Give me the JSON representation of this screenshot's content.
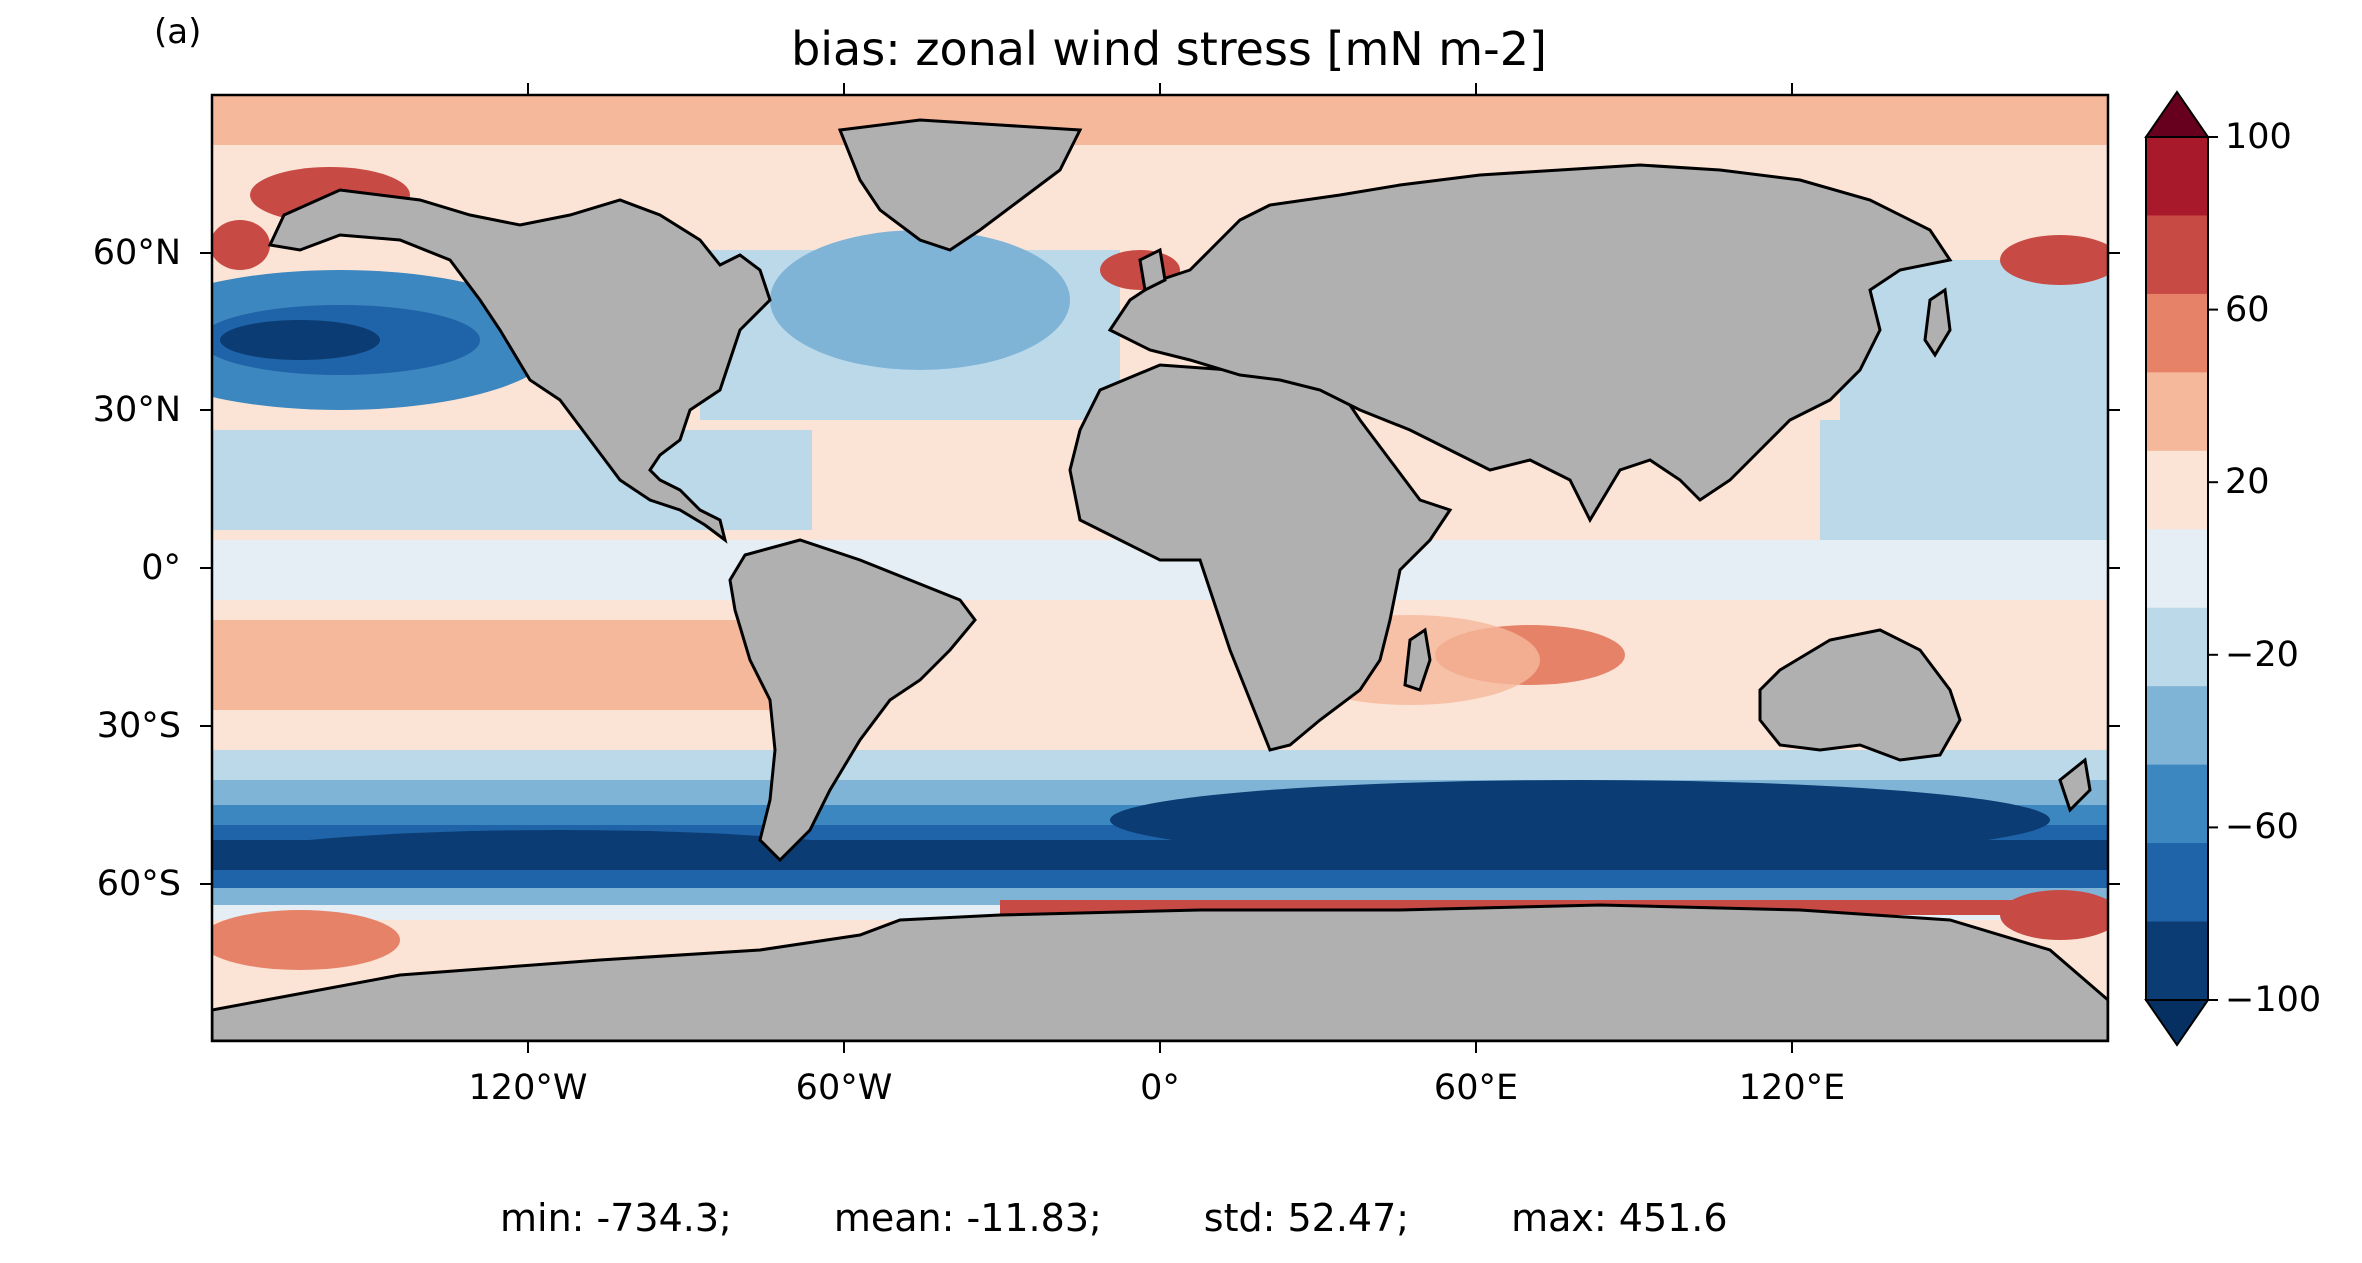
{
  "panel_label": "(a)",
  "title": "bias: zonal wind stress [mN m-2]",
  "lat_ticks": [
    "60°N",
    "30°N",
    "0°",
    "30°S",
    "60°S"
  ],
  "lon_ticks": [
    "120°W",
    "60°W",
    "0°",
    "60°E",
    "120°E"
  ],
  "colorbar": {
    "ticks": [
      "100",
      "60",
      "20",
      "−20",
      "−60",
      "−100"
    ],
    "levels": [
      -100,
      -80,
      -60,
      -40,
      -20,
      0,
      20,
      40,
      60,
      80,
      100
    ],
    "colors": [
      "#0b3c73",
      "#1f63a8",
      "#3c87bf",
      "#7fb4d7",
      "#bcd9ea",
      "#e5eef5",
      "#fbe3d6",
      "#f6b89b",
      "#e58268",
      "#c84a44",
      "#a8192c"
    ],
    "extend_min_color": "#053061",
    "extend_max_color": "#67001f"
  },
  "land_color": "#b0b0b0",
  "stats": {
    "min": "min: -734.3;",
    "mean": "mean: -11.83;",
    "std": "std: 52.47;",
    "max": "max: 451.6"
  }
}
